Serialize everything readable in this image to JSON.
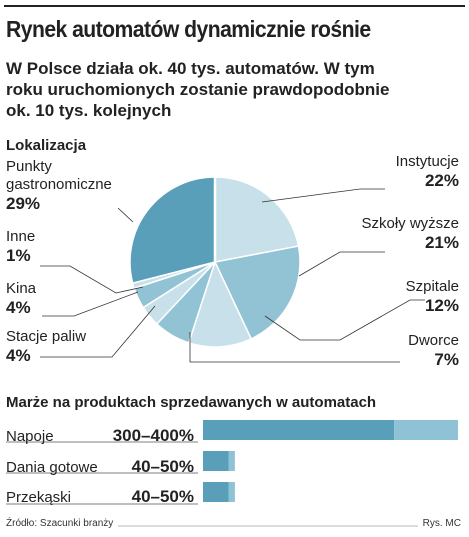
{
  "header": {
    "title": "Rynek automatów dynamicznie rośnie",
    "subtitle": "W Polsce działa ok. 40 tys. automatów. W tym roku uruchomionych zostanie prawdopodobnie ok. 10 tys. kolejnych"
  },
  "colors": {
    "dark": "#5a9fba",
    "mid": "#92c3d5",
    "light": "#c7e0e9",
    "bar_dark": "#5a9fba",
    "bar_light": "#8fc2d4"
  },
  "chart_data": [
    {
      "type": "pie",
      "title": "Lokalizacja",
      "slices": [
        {
          "label": "Punkty gastronomiczne",
          "value": 29,
          "value_label": "29%",
          "color": "#5a9fba"
        },
        {
          "label": "Instytucje",
          "value": 22,
          "value_label": "22%",
          "color": "#c7e0e9"
        },
        {
          "label": "Szkoły wyższe",
          "value": 21,
          "value_label": "21%",
          "color": "#92c3d5"
        },
        {
          "label": "Szpitale",
          "value": 12,
          "value_label": "12%",
          "color": "#c7e0e9"
        },
        {
          "label": "Dworce",
          "value": 7,
          "value_label": "7%",
          "color": "#92c3d5"
        },
        {
          "label": "Stacje paliw",
          "value": 4,
          "value_label": "4%",
          "color": "#c7e0e9"
        },
        {
          "label": "Kina",
          "value": 4,
          "value_label": "4%",
          "color": "#92c3d5"
        },
        {
          "label": "Inne",
          "value": 1,
          "value_label": "1%",
          "color": "#c7e0e9"
        }
      ]
    },
    {
      "type": "bar",
      "title": "Marże na produktach sprzedawanych w automatach",
      "categories": [
        "Napoje",
        "Dania gotowe",
        "Przekąski"
      ],
      "ranges": [
        [
          300,
          400
        ],
        [
          40,
          50
        ],
        [
          40,
          50
        ]
      ],
      "range_labels": [
        "300–400%",
        "40–50%",
        "40–50%"
      ],
      "xlim": [
        0,
        400
      ]
    }
  ],
  "footer": {
    "source": "Źródło: Szacunki branży",
    "credit": "Rys. MC"
  }
}
